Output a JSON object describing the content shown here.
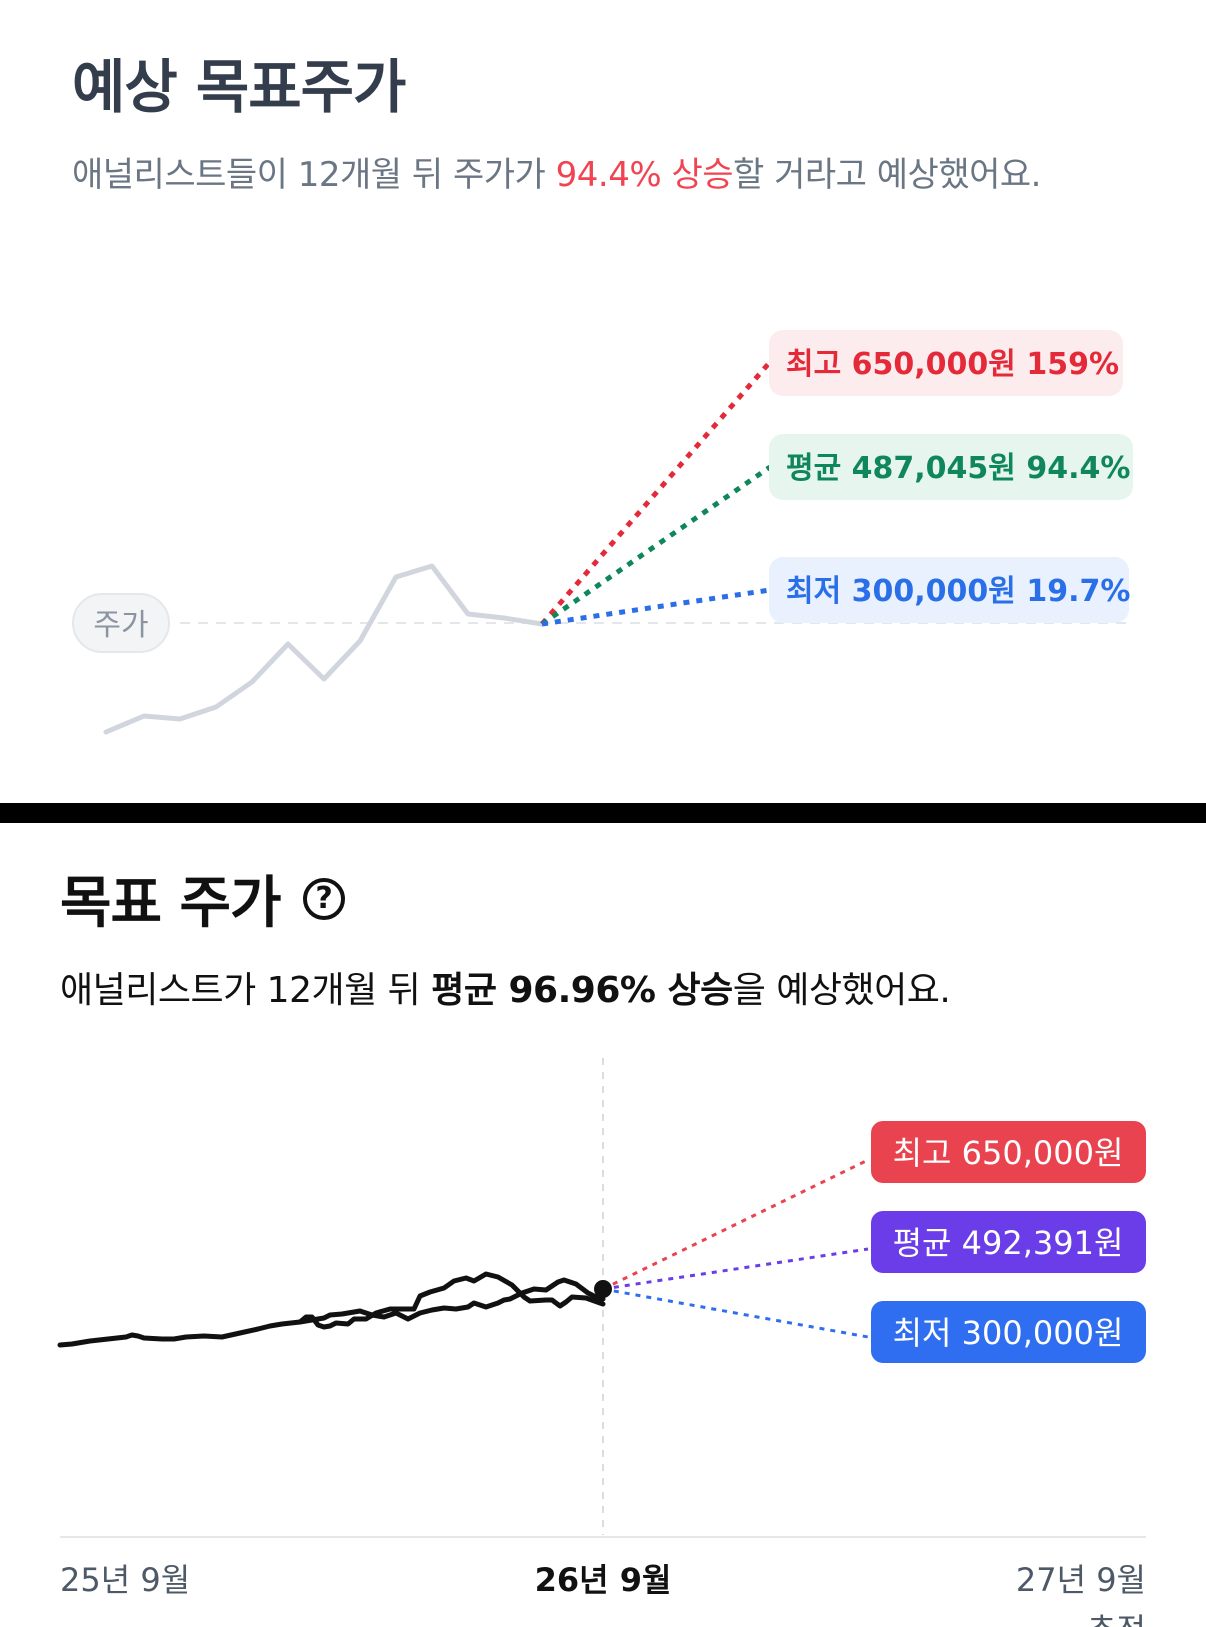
{
  "top": {
    "title": "예상 목표주가",
    "subtitle_before": "애널리스트들이 12개월 뒤 주가가 ",
    "subtitle_highlight": "94.4% 상승",
    "subtitle_after": "할 거라고 예상했어요.",
    "price_chip": "주가",
    "labels": {
      "high": "최고 650,000원 159%",
      "avg": "평균 487,045원 94.4%",
      "low": "최저 300,000원 19.7%"
    },
    "colors": {
      "high": "#e42939",
      "high_bg": "#fdeced",
      "avg": "#10875a",
      "avg_bg": "#e6f6ee",
      "low": "#2a6fe8",
      "low_bg": "#e8f1fd",
      "history": "#d1d6de"
    }
  },
  "bottom": {
    "title": "목표 주가",
    "help_icon": "question-circle-icon",
    "subtitle_before": "애널리스트가 12개월 뒤 ",
    "subtitle_strong": "평균 96.96% 상승",
    "subtitle_after": "을 예상했어요.",
    "labels": {
      "high": "최고 650,000원",
      "avg": "평균 492,391원",
      "low": "최저 300,000원"
    },
    "axis": {
      "start": "25년 9월",
      "current": "26년 9월",
      "end": "27년 9월",
      "end_sub": "추정"
    },
    "colors": {
      "high": "#e8434e",
      "avg": "#6a3de8",
      "low": "#2f6ef0",
      "line": "#111111"
    }
  }
}
